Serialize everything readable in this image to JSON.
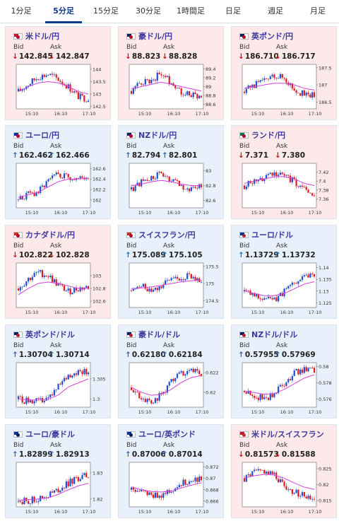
{
  "tabs": [
    {
      "label": "1分足",
      "active": false
    },
    {
      "label": "5分足",
      "active": true
    },
    {
      "label": "15分足",
      "active": false
    },
    {
      "label": "30分足",
      "active": false
    },
    {
      "label": "1時間足",
      "active": false
    },
    {
      "label": "日足",
      "active": false
    },
    {
      "label": "週足",
      "active": false
    },
    {
      "label": "月足",
      "active": false
    }
  ],
  "labels": {
    "bid": "Bid",
    "ask": "Ask"
  },
  "colors": {
    "up_candle": "#1f4fd0",
    "down_candle": "#e0181f",
    "ma_line": "#d43fd8",
    "arrow_down": "#d0121b",
    "arrow_up": "#1f6fc1",
    "pink_card": "#fde9ea",
    "blue_card": "#e8f1fb"
  },
  "cards": [
    {
      "pair": "米ドル/円",
      "bid": "142.845",
      "ask": "142.847",
      "dir": "down",
      "bg": "pink",
      "flag": "us-jp",
      "chart_data": {
        "type": "candlestick",
        "x_ticks": [
          "15:10",
          "16:10",
          "17:10"
        ],
        "y_ticks": [
          "144",
          "143.5",
          "143",
          "142.5"
        ],
        "ylim": [
          142.4,
          144.2
        ],
        "trend": [
          143.1,
          143.4,
          143.7,
          143.8,
          143.6,
          143.3,
          142.9,
          142.8
        ],
        "ma": [
          143.1,
          143.3,
          143.45,
          143.5,
          143.45,
          143.3,
          143.1,
          143.0
        ]
      }
    },
    {
      "pair": "豪ドル/円",
      "bid": "88.823",
      "ask": "88.828",
      "dir": "down",
      "bg": "pink",
      "flag": "au-jp",
      "chart_data": {
        "type": "candlestick",
        "x_ticks": [
          "15:10",
          "16:10",
          "17:10"
        ],
        "y_ticks": [
          "89.4",
          "89.2",
          "89",
          "88.8",
          "88.6"
        ],
        "ylim": [
          88.5,
          89.5
        ],
        "trend": [
          88.9,
          89.1,
          89.15,
          89.3,
          89.1,
          88.9,
          88.8,
          88.8
        ],
        "ma": [
          88.95,
          89.0,
          89.05,
          89.1,
          89.05,
          89.0,
          88.95,
          88.9
        ]
      }
    },
    {
      "pair": "英ポンド/円",
      "bid": "186.710",
      "ask": "186.717",
      "dir": "down",
      "bg": "pink",
      "flag": "gb-jp",
      "chart_data": {
        "type": "candlestick",
        "x_ticks": [
          "15:10",
          "16:10",
          "17:10"
        ],
        "y_ticks": [
          "187.5",
          "187",
          "186.5"
        ],
        "ylim": [
          186.3,
          187.6
        ],
        "trend": [
          186.8,
          187.0,
          187.1,
          187.3,
          187.2,
          186.9,
          186.7,
          186.7
        ],
        "ma": [
          186.9,
          186.95,
          187.0,
          187.05,
          187.05,
          187.0,
          186.9,
          186.85
        ]
      }
    },
    {
      "pair": "ユーロ/円",
      "bid": "162.462",
      "ask": "162.466",
      "dir": "up",
      "bg": "blue",
      "flag": "eu-jp",
      "chart_data": {
        "type": "candlestick",
        "x_ticks": [
          "15:10",
          "16:10",
          "17:10"
        ],
        "y_ticks": [
          "162.6",
          "162.4",
          "162.2",
          "162"
        ],
        "ylim": [
          161.85,
          162.7
        ],
        "trend": [
          162.0,
          162.1,
          162.15,
          162.35,
          162.5,
          162.45,
          162.4,
          162.45
        ],
        "ma": [
          162.05,
          162.1,
          162.15,
          162.25,
          162.35,
          162.4,
          162.4,
          162.42
        ]
      }
    },
    {
      "pair": "NZドル/円",
      "bid": "82.794",
      "ask": "82.801",
      "dir": "up",
      "bg": "blue",
      "flag": "nz-jp",
      "chart_data": {
        "type": "candlestick",
        "x_ticks": [
          "15:10",
          "16:10",
          "17:10"
        ],
        "y_ticks": [
          "83",
          "82.8",
          "82.6"
        ],
        "ylim": [
          82.5,
          83.1
        ],
        "trend": [
          82.75,
          82.85,
          82.9,
          82.95,
          82.85,
          82.8,
          82.75,
          82.8
        ],
        "ma": [
          82.8,
          82.82,
          82.85,
          82.87,
          82.85,
          82.82,
          82.8,
          82.8
        ]
      }
    },
    {
      "pair": "ランド/円",
      "bid": "7.371",
      "ask": "7.380",
      "dir": "down",
      "bg": "pink",
      "flag": "za-jp",
      "chart_data": {
        "type": "candlestick",
        "x_ticks": [
          "15:10",
          "16:10",
          "17:10"
        ],
        "y_ticks": [
          "7.42",
          "7.4",
          "7.38",
          "7.36"
        ],
        "ylim": [
          7.34,
          7.44
        ],
        "trend": [
          7.39,
          7.4,
          7.41,
          7.42,
          7.41,
          7.4,
          7.38,
          7.37
        ],
        "ma": [
          7.395,
          7.4,
          7.405,
          7.41,
          7.41,
          7.405,
          7.395,
          7.39
        ]
      }
    },
    {
      "pair": "カナダドル/円",
      "bid": "102.822",
      "ask": "102.828",
      "dir": "down",
      "bg": "pink",
      "flag": "ca-jp",
      "chart_data": {
        "type": "candlestick",
        "x_ticks": [
          "15:10",
          "16:10",
          "17:10"
        ],
        "y_ticks": [
          "103",
          "102.8",
          "102.6"
        ],
        "ylim": [
          102.5,
          103.2
        ],
        "trend": [
          102.8,
          102.95,
          103.05,
          103.0,
          102.85,
          102.75,
          102.8,
          102.82
        ],
        "ma": [
          102.7,
          102.8,
          102.88,
          102.9,
          102.88,
          102.84,
          102.8,
          102.8
        ]
      }
    },
    {
      "pair": "スイスフラン/円",
      "bid": "175.089",
      "ask": "175.105",
      "dir": "up",
      "bg": "blue",
      "flag": "ch-jp",
      "chart_data": {
        "type": "candlestick",
        "x_ticks": [
          "15:10",
          "16:10",
          "17:10"
        ],
        "y_ticks": [
          "175.5",
          "175",
          "174.5"
        ],
        "ylim": [
          174.3,
          175.6
        ],
        "trend": [
          174.8,
          174.9,
          174.85,
          174.95,
          175.1,
          175.2,
          175.2,
          175.1
        ],
        "ma": [
          174.85,
          174.87,
          174.9,
          174.95,
          175.0,
          175.05,
          175.08,
          175.1
        ]
      }
    },
    {
      "pair": "ユーロ/ドル",
      "bid": "1.13729",
      "ask": "1.13732",
      "dir": "up",
      "bg": "blue",
      "flag": "eu-us",
      "chart_data": {
        "type": "candlestick",
        "x_ticks": [
          "15:10",
          "16:10",
          "17:10"
        ],
        "y_ticks": [
          "1.14",
          "1.135",
          "1.13",
          "1.125"
        ],
        "ylim": [
          1.123,
          1.142
        ],
        "trend": [
          1.13,
          1.128,
          1.127,
          1.126,
          1.13,
          1.134,
          1.137,
          1.137
        ],
        "ma": [
          1.13,
          1.129,
          1.128,
          1.128,
          1.129,
          1.131,
          1.133,
          1.134
        ]
      }
    },
    {
      "pair": "英ポンド/ドル",
      "bid": "1.30704",
      "ask": "1.30714",
      "dir": "up",
      "bg": "blue",
      "flag": "gb-us",
      "chart_data": {
        "type": "candlestick",
        "x_ticks": [
          "15:10",
          "16:10",
          "17:10"
        ],
        "y_ticks": [
          "1.305",
          "1.3"
        ],
        "ylim": [
          1.298,
          1.309
        ],
        "trend": [
          1.3,
          1.2995,
          1.2995,
          1.3,
          1.303,
          1.306,
          1.307,
          1.307
        ],
        "ma": [
          1.3,
          1.2998,
          1.2998,
          1.3,
          1.301,
          1.303,
          1.304,
          1.305
        ]
      }
    },
    {
      "pair": "豪ドル/ドル",
      "bid": "0.62180",
      "ask": "0.62184",
      "dir": "up",
      "bg": "blue",
      "flag": "au-us",
      "chart_data": {
        "type": "candlestick",
        "x_ticks": [
          "15:10",
          "16:10",
          "17:10"
        ],
        "y_ticks": [
          "0.622",
          "0.62"
        ],
        "ylim": [
          0.6185,
          0.623
        ],
        "trend": [
          0.6205,
          0.6195,
          0.619,
          0.6198,
          0.621,
          0.622,
          0.6222,
          0.6218
        ],
        "ma": [
          0.6205,
          0.62,
          0.6197,
          0.6198,
          0.6203,
          0.621,
          0.6215,
          0.6217
        ]
      }
    },
    {
      "pair": "NZドル/ドル",
      "bid": "0.57955",
      "ask": "0.57969",
      "dir": "up",
      "bg": "blue",
      "flag": "nz-us",
      "chart_data": {
        "type": "candlestick",
        "x_ticks": [
          "15:10",
          "16:10",
          "17:10"
        ],
        "y_ticks": [
          "0.58",
          "0.578",
          "0.576"
        ],
        "ylim": [
          0.575,
          0.5805
        ],
        "trend": [
          0.577,
          0.5765,
          0.576,
          0.5768,
          0.578,
          0.5792,
          0.5796,
          0.5795
        ],
        "ma": [
          0.577,
          0.5768,
          0.5766,
          0.5767,
          0.5772,
          0.5779,
          0.5786,
          0.579
        ]
      }
    },
    {
      "pair": "ユーロ/豪ドル",
      "bid": "1.82899",
      "ask": "1.82913",
      "dir": "up",
      "bg": "blue",
      "flag": "eu-au",
      "chart_data": {
        "type": "candlestick",
        "x_ticks": [
          "15:10",
          "16:10",
          "17:10"
        ],
        "y_ticks": [
          "1.83",
          "1.82"
        ],
        "ylim": [
          1.817,
          1.834
        ],
        "trend": [
          1.819,
          1.8195,
          1.82,
          1.8215,
          1.8235,
          1.826,
          1.828,
          1.829
        ],
        "ma": [
          1.8195,
          1.8198,
          1.82,
          1.8205,
          1.8218,
          1.8235,
          1.825,
          1.826
        ]
      }
    },
    {
      "pair": "ユーロ/英ポンド",
      "bid": "0.87006",
      "ask": "0.87014",
      "dir": "up",
      "bg": "blue",
      "flag": "eu-gb",
      "chart_data": {
        "type": "candlestick",
        "x_ticks": [
          "15:10",
          "16:10",
          "17:10"
        ],
        "y_ticks": [
          "0.872",
          "0.87",
          "0.868",
          "0.866"
        ],
        "ylim": [
          0.865,
          0.8728
        ],
        "trend": [
          0.868,
          0.8675,
          0.867,
          0.8672,
          0.868,
          0.869,
          0.8698,
          0.87
        ],
        "ma": [
          0.8685,
          0.868,
          0.8677,
          0.8676,
          0.8678,
          0.8683,
          0.8688,
          0.8692
        ]
      }
    },
    {
      "pair": "米ドル/スイスフラン",
      "bid": "0.81573",
      "ask": "0.81588",
      "dir": "down",
      "bg": "pink",
      "flag": "us-ch",
      "chart_data": {
        "type": "candlestick",
        "x_ticks": [
          "15:10",
          "16:10",
          "17:10"
        ],
        "y_ticks": [
          "0.825",
          "0.82",
          "0.815"
        ],
        "ylim": [
          0.813,
          0.827
        ],
        "trend": [
          0.822,
          0.824,
          0.8245,
          0.823,
          0.82,
          0.8175,
          0.8165,
          0.816
        ],
        "ma": [
          0.822,
          0.8228,
          0.8232,
          0.823,
          0.822,
          0.8205,
          0.8192,
          0.8185
        ]
      }
    }
  ]
}
